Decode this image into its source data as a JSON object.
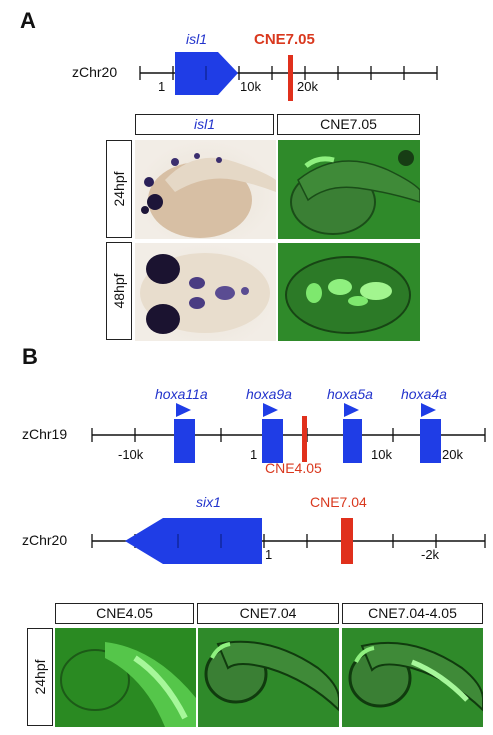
{
  "panelA": {
    "letter": "A",
    "chr_label": "zChr20",
    "gene": "isl1",
    "cne": "CNE7.05",
    "ticks": [
      "1",
      "10k",
      "20k"
    ],
    "col_headers": [
      "isl1",
      "CNE7.05"
    ],
    "row_headers": [
      "24hpf",
      "48hpf"
    ]
  },
  "panelB": {
    "letter": "B",
    "chr19_label": "zChr19",
    "genes19": [
      "hoxa11a",
      "hoxa9a",
      "hoxa5a",
      "hoxa4a"
    ],
    "ticks19": [
      "-10k",
      "1",
      "10k",
      "20k"
    ],
    "cne19": "CNE4.05",
    "chr20_label": "zChr20",
    "gene20": "six1",
    "cne20": "CNE7.04",
    "ticks20": [
      "1",
      "-2k"
    ],
    "col_headers": [
      "CNE4.05",
      "CNE7.04",
      "CNE7.04-4.05"
    ],
    "row_header": "24hpf"
  },
  "colors": {
    "gene_blue": "#1f3de6",
    "cne_red": "#e0301c",
    "label_blue": "#2233cc",
    "fluorescence_green": "#2f8a2a"
  }
}
